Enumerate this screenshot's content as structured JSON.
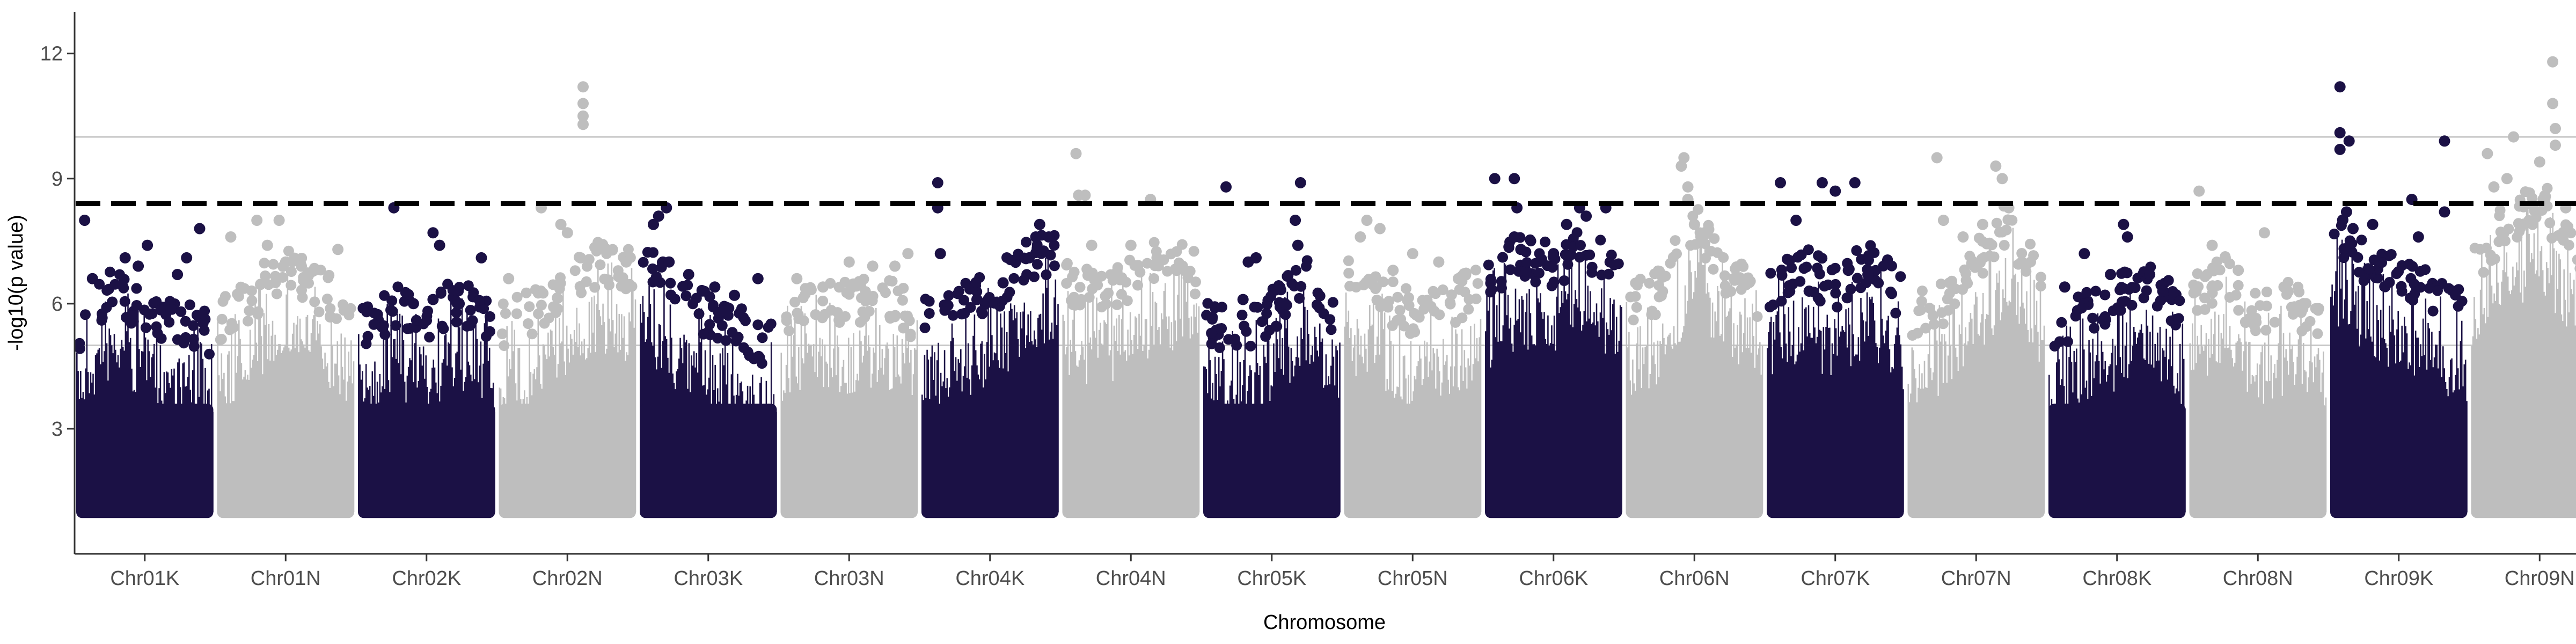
{
  "chart_data": {
    "type": "scatter",
    "title": "",
    "xlabel": "Chromosome",
    "ylabel": "-log10(p value)",
    "ylim": [
      0,
      13
    ],
    "yticks": [
      3,
      6,
      9,
      12
    ],
    "grid": false,
    "legend": "none",
    "colors": {
      "dark": "#1b1145",
      "light": "#bebebe",
      "threshold": "#000000",
      "refline": "#c8c8c8"
    },
    "threshold_dashed": 8.4,
    "reference_lines": [
      5.0,
      10.0
    ],
    "base_level": 1.0,
    "categories": [
      "Chr01K",
      "Chr01N",
      "Chr02K",
      "Chr02N",
      "Chr03K",
      "Chr03N",
      "Chr04K",
      "Chr04N",
      "Chr05K",
      "Chr05N",
      "Chr06K",
      "Chr06N",
      "Chr07K",
      "Chr07N",
      "Chr08K",
      "Chr08N",
      "Chr09K",
      "Chr09N"
    ],
    "series": [
      {
        "category": "Chr01K",
        "color": "dark",
        "dense_top": [
          5.1,
          6.0,
          5.5,
          5.2,
          4.9
        ],
        "peaks": [
          [
            0.04,
            8.0
          ],
          [
            0.1,
            6.6
          ],
          [
            0.35,
            7.1
          ],
          [
            0.45,
            6.9
          ],
          [
            0.52,
            7.4
          ],
          [
            0.75,
            6.7
          ],
          [
            0.82,
            7.1
          ],
          [
            0.92,
            7.8
          ]
        ]
      },
      {
        "category": "Chr01N",
        "color": "light",
        "dense_top": [
          5.2,
          5.8,
          6.6,
          6.0,
          5.4
        ],
        "peaks": [
          [
            0.08,
            7.6
          ],
          [
            0.28,
            8.0
          ],
          [
            0.36,
            7.4
          ],
          [
            0.45,
            8.0
          ],
          [
            0.5,
            7.0
          ],
          [
            0.62,
            6.9
          ],
          [
            0.72,
            6.8
          ],
          [
            0.9,
            7.3
          ]
        ]
      },
      {
        "category": "Chr02K",
        "color": "dark",
        "dense_top": [
          5.0,
          5.6,
          5.3,
          5.8,
          5.2
        ],
        "peaks": [
          [
            0.25,
            8.3
          ],
          [
            0.4,
            6.0
          ],
          [
            0.55,
            6.1
          ],
          [
            0.55,
            7.7
          ],
          [
            0.6,
            7.4
          ],
          [
            0.75,
            6.0
          ],
          [
            0.92,
            7.1
          ]
        ]
      },
      {
        "category": "Chr02N",
        "color": "light",
        "dense_top": [
          5.1,
          5.5,
          6.2,
          6.6,
          6.4
        ],
        "peaks": [
          [
            0.05,
            6.6
          ],
          [
            0.3,
            8.3
          ],
          [
            0.45,
            7.9
          ],
          [
            0.5,
            7.7
          ],
          [
            0.6,
            7.1
          ],
          [
            0.62,
            11.2
          ],
          [
            0.62,
            10.8
          ],
          [
            0.62,
            10.5
          ],
          [
            0.62,
            10.3
          ],
          [
            0.8,
            7.3
          ],
          [
            0.95,
            7.0
          ]
        ]
      },
      {
        "category": "Chr03K",
        "color": "dark",
        "dense_top": [
          6.6,
          5.8,
          5.4,
          5.0,
          4.6
        ],
        "peaks": [
          [
            0.08,
            7.9
          ],
          [
            0.12,
            8.1
          ],
          [
            0.18,
            8.3
          ],
          [
            0.2,
            7.0
          ],
          [
            0.35,
            6.7
          ],
          [
            0.55,
            6.4
          ],
          [
            0.7,
            6.2
          ],
          [
            0.88,
            6.6
          ]
        ]
      },
      {
        "category": "Chr03N",
        "color": "light",
        "dense_top": [
          5.4,
          5.8,
          5.6,
          5.9,
          5.3
        ],
        "peaks": [
          [
            0.1,
            6.6
          ],
          [
            0.3,
            6.4
          ],
          [
            0.5,
            7.0
          ],
          [
            0.68,
            6.9
          ],
          [
            0.85,
            6.9
          ],
          [
            0.95,
            7.2
          ]
        ]
      },
      {
        "category": "Chr04K",
        "color": "dark",
        "dense_top": [
          5.3,
          5.5,
          5.9,
          6.6,
          7.0
        ],
        "peaks": [
          [
            0.1,
            8.9
          ],
          [
            0.1,
            8.3
          ],
          [
            0.12,
            7.2
          ],
          [
            0.4,
            6.1
          ],
          [
            0.6,
            6.5
          ],
          [
            0.8,
            7.1
          ],
          [
            0.85,
            7.6
          ],
          [
            0.88,
            7.9
          ],
          [
            0.95,
            7.6
          ]
        ]
      },
      {
        "category": "Chr04N",
        "color": "light",
        "dense_top": [
          6.1,
          5.9,
          6.2,
          6.8,
          6.4
        ],
        "peaks": [
          [
            0.08,
            9.6
          ],
          [
            0.1,
            8.6
          ],
          [
            0.15,
            8.6
          ],
          [
            0.2,
            7.4
          ],
          [
            0.5,
            7.4
          ],
          [
            0.65,
            8.5
          ],
          [
            0.7,
            7.1
          ],
          [
            0.85,
            6.8
          ]
        ]
      },
      {
        "category": "Chr05K",
        "color": "dark",
        "dense_top": [
          5.2,
          4.9,
          5.5,
          6.3,
          5.4
        ],
        "peaks": [
          [
            0.15,
            8.8
          ],
          [
            0.28,
            6.1
          ],
          [
            0.32,
            7.0
          ],
          [
            0.38,
            7.1
          ],
          [
            0.6,
            6.0
          ],
          [
            0.68,
            8.0
          ],
          [
            0.7,
            7.4
          ],
          [
            0.72,
            8.9
          ]
        ]
      },
      {
        "category": "Chr05N",
        "color": "light",
        "dense_top": [
          6.2,
          5.8,
          5.4,
          5.6,
          6.0
        ],
        "peaks": [
          [
            0.1,
            7.6
          ],
          [
            0.15,
            8.0
          ],
          [
            0.25,
            7.8
          ],
          [
            0.35,
            6.8
          ],
          [
            0.5,
            7.2
          ],
          [
            0.7,
            7.0
          ],
          [
            0.85,
            6.6
          ]
        ]
      },
      {
        "category": "Chr06K",
        "color": "dark",
        "dense_top": [
          6.2,
          6.8,
          6.6,
          6.9,
          6.4
        ],
        "peaks": [
          [
            0.05,
            9.0
          ],
          [
            0.2,
            9.0
          ],
          [
            0.22,
            8.3
          ],
          [
            0.2,
            7.6
          ],
          [
            0.25,
            7.3
          ],
          [
            0.5,
            7.2
          ],
          [
            0.6,
            7.9
          ],
          [
            0.7,
            8.3
          ],
          [
            0.75,
            8.1
          ],
          [
            0.9,
            8.3
          ]
        ]
      },
      {
        "category": "Chr06N",
        "color": "light",
        "dense_top": [
          5.6,
          6.0,
          7.6,
          6.3,
          5.8
        ],
        "peaks": [
          [
            0.4,
            9.3
          ],
          [
            0.42,
            9.5
          ],
          [
            0.45,
            8.8
          ],
          [
            0.45,
            8.5
          ],
          [
            0.5,
            7.9
          ],
          [
            0.55,
            7.6
          ],
          [
            0.9,
            6.6
          ]
        ]
      },
      {
        "category": "Chr07K",
        "color": "dark",
        "dense_top": [
          6.1,
          6.5,
          6.0,
          6.7,
          5.8
        ],
        "peaks": [
          [
            0.08,
            8.9
          ],
          [
            0.2,
            8.0
          ],
          [
            0.3,
            6.3
          ],
          [
            0.4,
            8.9
          ],
          [
            0.5,
            8.7
          ],
          [
            0.6,
            6.8
          ],
          [
            0.65,
            8.9
          ],
          [
            0.75,
            6.7
          ]
        ]
      },
      {
        "category": "Chr07N",
        "color": "light",
        "dense_top": [
          5.4,
          5.6,
          6.6,
          7.6,
          6.0
        ],
        "peaks": [
          [
            0.2,
            9.5
          ],
          [
            0.25,
            8.0
          ],
          [
            0.4,
            7.6
          ],
          [
            0.55,
            7.9
          ],
          [
            0.65,
            9.3
          ],
          [
            0.7,
            9.0
          ],
          [
            0.75,
            8.3
          ],
          [
            0.85,
            7.0
          ]
        ]
      },
      {
        "category": "Chr08K",
        "color": "dark",
        "dense_top": [
          5.0,
          5.4,
          5.8,
          6.3,
          5.2
        ],
        "peaks": [
          [
            0.1,
            6.4
          ],
          [
            0.25,
            7.2
          ],
          [
            0.45,
            6.7
          ],
          [
            0.55,
            7.9
          ],
          [
            0.58,
            7.6
          ],
          [
            0.75,
            6.7
          ],
          [
            0.85,
            6.3
          ]
        ]
      },
      {
        "category": "Chr08N",
        "color": "light",
        "dense_top": [
          5.9,
          6.3,
          5.4,
          5.7,
          5.2
        ],
        "peaks": [
          [
            0.05,
            8.7
          ],
          [
            0.15,
            7.4
          ],
          [
            0.25,
            7.1
          ],
          [
            0.35,
            6.8
          ],
          [
            0.55,
            7.7
          ],
          [
            0.7,
            6.4
          ],
          [
            0.85,
            6.0
          ]
        ]
      },
      {
        "category": "Chr09K",
        "color": "dark",
        "dense_top": [
          7.4,
          6.6,
          6.2,
          5.9,
          5.4
        ],
        "peaks": [
          [
            0.05,
            11.2
          ],
          [
            0.05,
            10.1
          ],
          [
            0.05,
            9.7
          ],
          [
            0.12,
            9.9
          ],
          [
            0.1,
            8.2
          ],
          [
            0.15,
            7.8
          ],
          [
            0.3,
            7.9
          ],
          [
            0.6,
            8.5
          ],
          [
            0.65,
            7.6
          ],
          [
            0.85,
            9.9
          ],
          [
            0.85,
            8.2
          ]
        ]
      },
      {
        "category": "Chr09N",
        "color": "light",
        "dense_top": [
          6.6,
          7.6,
          8.2,
          7.0,
          6.2
        ],
        "peaks": [
          [
            0.1,
            9.6
          ],
          [
            0.15,
            8.8
          ],
          [
            0.25,
            9.0
          ],
          [
            0.3,
            10.0
          ],
          [
            0.5,
            9.4
          ],
          [
            0.6,
            11.8
          ],
          [
            0.6,
            10.8
          ],
          [
            0.62,
            10.2
          ],
          [
            0.62,
            9.8
          ],
          [
            0.7,
            8.3
          ],
          [
            0.95,
            7.2
          ]
        ]
      }
    ]
  }
}
